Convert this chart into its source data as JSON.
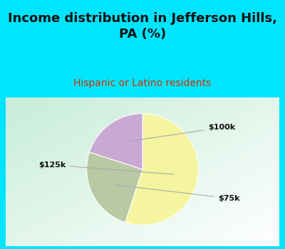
{
  "title": "Income distribution in Jefferson Hills,\nPA (%)",
  "subtitle": "Hispanic or Latino residents",
  "slices": [
    {
      "label": "$125k",
      "value": 55,
      "color": "#f5f5a0"
    },
    {
      "label": "$75k",
      "value": 25,
      "color": "#b8c9a3"
    },
    {
      "label": "$100k",
      "value": 20,
      "color": "#c9a8d4"
    }
  ],
  "startangle": 90,
  "background_top": "#00e5ff",
  "background_chart_color": "#cceee0",
  "title_color": "#111111",
  "subtitle_color": "#cc3300",
  "label_color": "#111111",
  "title_fontsize": 13,
  "subtitle_fontsize": 10,
  "label_fontsize": 8
}
